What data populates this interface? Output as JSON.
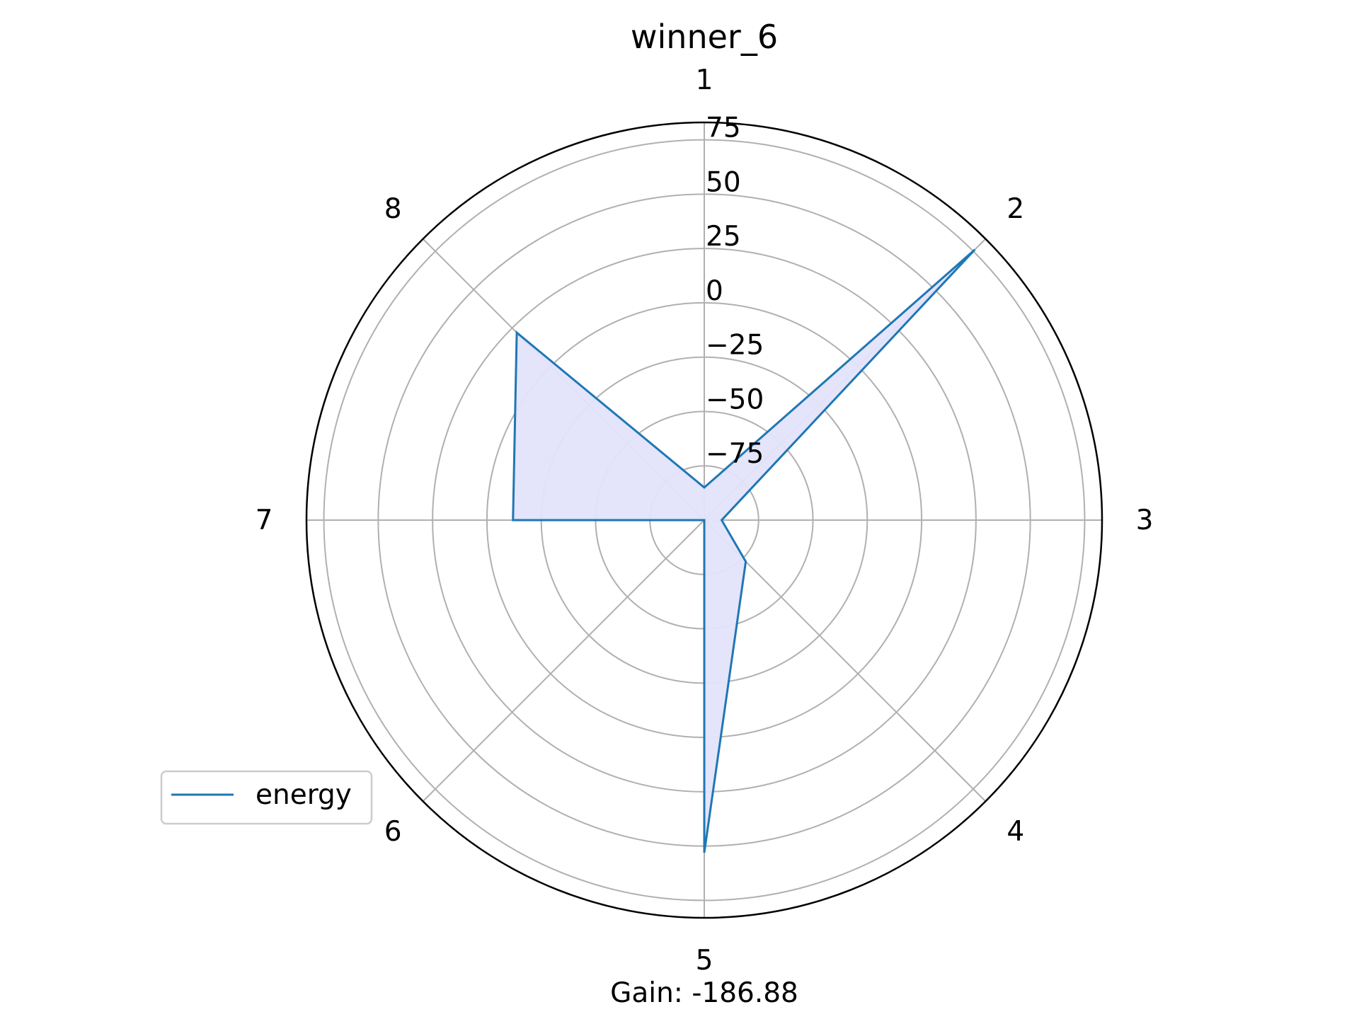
{
  "chart_data": {
    "type": "radar",
    "title": "winner_6",
    "categories": [
      "1",
      "2",
      "3",
      "4",
      "5",
      "6",
      "7",
      "8"
    ],
    "radial_ticks": [
      "−75",
      "−50",
      "−25",
      "0",
      "25",
      "50",
      "75"
    ],
    "radial_tick_values": [
      -75,
      -50,
      -25,
      0,
      25,
      50,
      75
    ],
    "rlim": [
      -100,
      83
    ],
    "grid": true,
    "series": [
      {
        "name": "energy",
        "values": [
          -85,
          76,
          -92,
          -73,
          53,
          -100,
          -12,
          22
        ],
        "line_color": "#1f77b4",
        "fill_color": "#e3e3fb"
      }
    ],
    "legend_position": "lower-left",
    "footer": "Gain: -186.88"
  }
}
